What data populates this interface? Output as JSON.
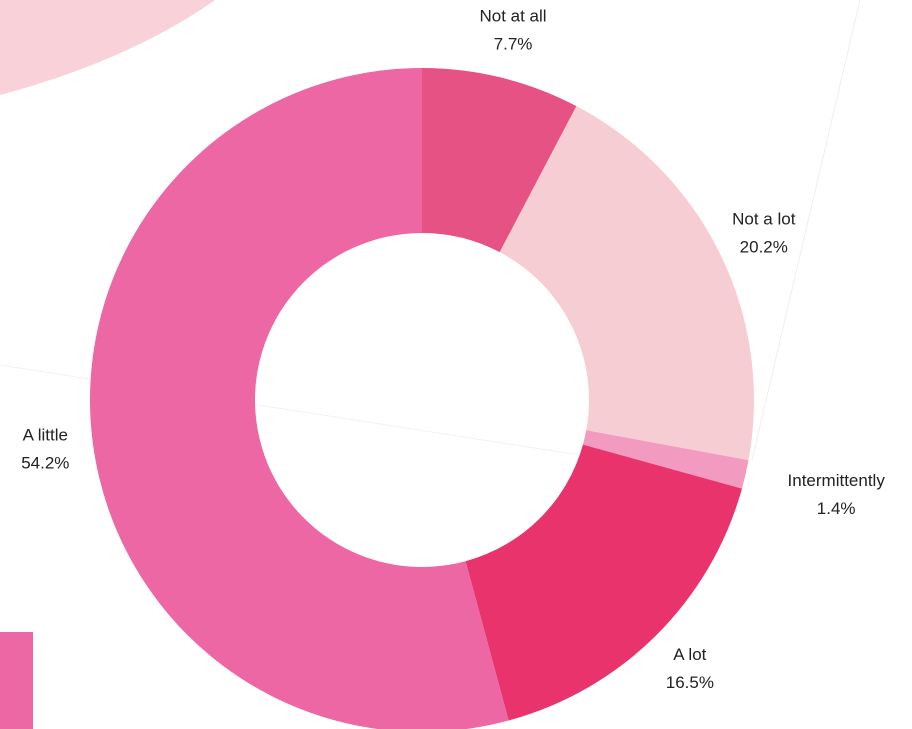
{
  "chart_data": {
    "type": "donut",
    "categories": [
      "Not at all",
      "Not a lot",
      "Intermittently",
      "A lot",
      "A little"
    ],
    "values": [
      7.7,
      20.2,
      1.4,
      16.5,
      54.2
    ],
    "value_labels": [
      "7.7%",
      "20.2%",
      "1.4%",
      "16.5%",
      "54.2%"
    ],
    "colors": [
      "#e75284",
      "#f7cdd4",
      "#f29ac0",
      "#e8336d",
      "#ec67a3"
    ]
  }
}
